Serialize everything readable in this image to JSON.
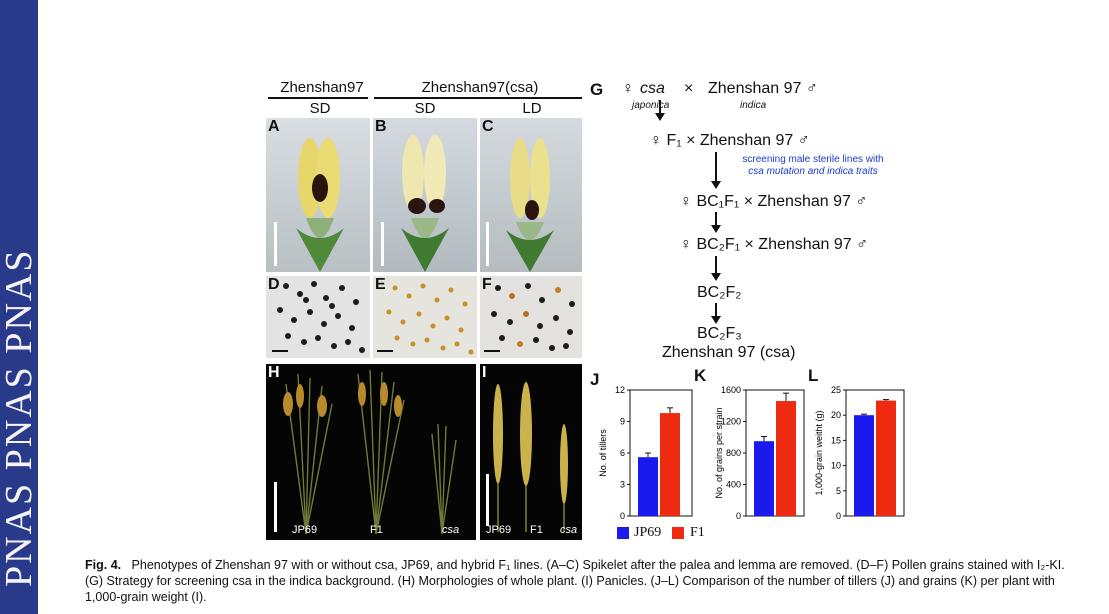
{
  "sidebar": {
    "text": "PNAS PNAS PNAS"
  },
  "headers": {
    "zhenshan97": "Zhenshan97",
    "zhenshan97_csa": "Zhenshan97(csa)",
    "sd1": "SD",
    "sd2": "SD",
    "ld": "LD"
  },
  "panel_labels": {
    "A": "A",
    "B": "B",
    "C": "C",
    "D": "D",
    "E": "E",
    "F": "F",
    "G": "G",
    "H": "H",
    "I": "I",
    "J": "J",
    "K": "K",
    "L": "L"
  },
  "photo_labels": {
    "h_jp69": "JP69",
    "h_f1": "F1",
    "h_csa": "csa",
    "i_jp69": "JP69",
    "i_f1": "F1",
    "i_csa": "csa"
  },
  "flow": {
    "row1_female": "♀",
    "row1_csa": "csa",
    "row1_cross": "×",
    "row1_male": "Zhenshan 97 ♂",
    "row1_japonica": "japonica",
    "row1_indica": "indica",
    "row2": "♀ F₁  ×  Zhenshan 97 ♂",
    "screen_text1": "screening male sterile lines with",
    "screen_text2": "csa mutation and indica traits",
    "row3": "♀ BC₁F₁ ×  Zhenshan 97 ♂",
    "row4": "♀ BC₂F₁ ×  Zhenshan 97 ♂",
    "row5": "BC₂F₂",
    "row6a": "BC₂F₃",
    "row6b": "Zhenshan 97 (csa)"
  },
  "colors": {
    "jp69": "#1a1aee",
    "f1": "#ee2a10",
    "sidebar": "#2a3a8a"
  },
  "legend": {
    "jp69": "JP69",
    "f1": "F1"
  },
  "chart_data": [
    {
      "type": "bar",
      "panel": "J",
      "categories": [
        "JP69",
        "F1"
      ],
      "values": [
        5.6,
        9.8
      ],
      "errors": [
        0.4,
        0.5
      ],
      "ylabel": "No. of tillers",
      "ylim": [
        0,
        12
      ],
      "yticks": [
        0,
        3,
        6,
        9,
        12
      ]
    },
    {
      "type": "bar",
      "panel": "K",
      "categories": [
        "JP69",
        "F1"
      ],
      "values": [
        950,
        1460
      ],
      "errors": [
        60,
        100
      ],
      "ylabel": "No. of grains per strain",
      "ylim": [
        0,
        1600
      ],
      "yticks": [
        0,
        400,
        800,
        1200,
        1600
      ]
    },
    {
      "type": "bar",
      "panel": "L",
      "categories": [
        "JP69",
        "F1"
      ],
      "values": [
        20.0,
        22.9
      ],
      "errors": [
        0.2,
        0.2
      ],
      "ylabel": "1,000-grain weitht (g)",
      "ylim": [
        0,
        25
      ],
      "yticks": [
        0,
        5,
        10,
        15,
        20,
        25
      ]
    }
  ],
  "caption": {
    "fig": "Fig. 4.",
    "text": "Phenotypes of Zhenshan 97 with or without csa, JP69, and hybrid F₁ lines. (A–C) Spikelet after the palea and lemma are removed. (D–F) Pollen grains stained with I₂-KI. (G) Strategy for screening csa in the indica background. (H) Morphologies of whole plant. (I) Panicles. (J–L) Comparison of the number of tillers (J) and grains (K) per plant with 1,000-grain weight (I)."
  }
}
